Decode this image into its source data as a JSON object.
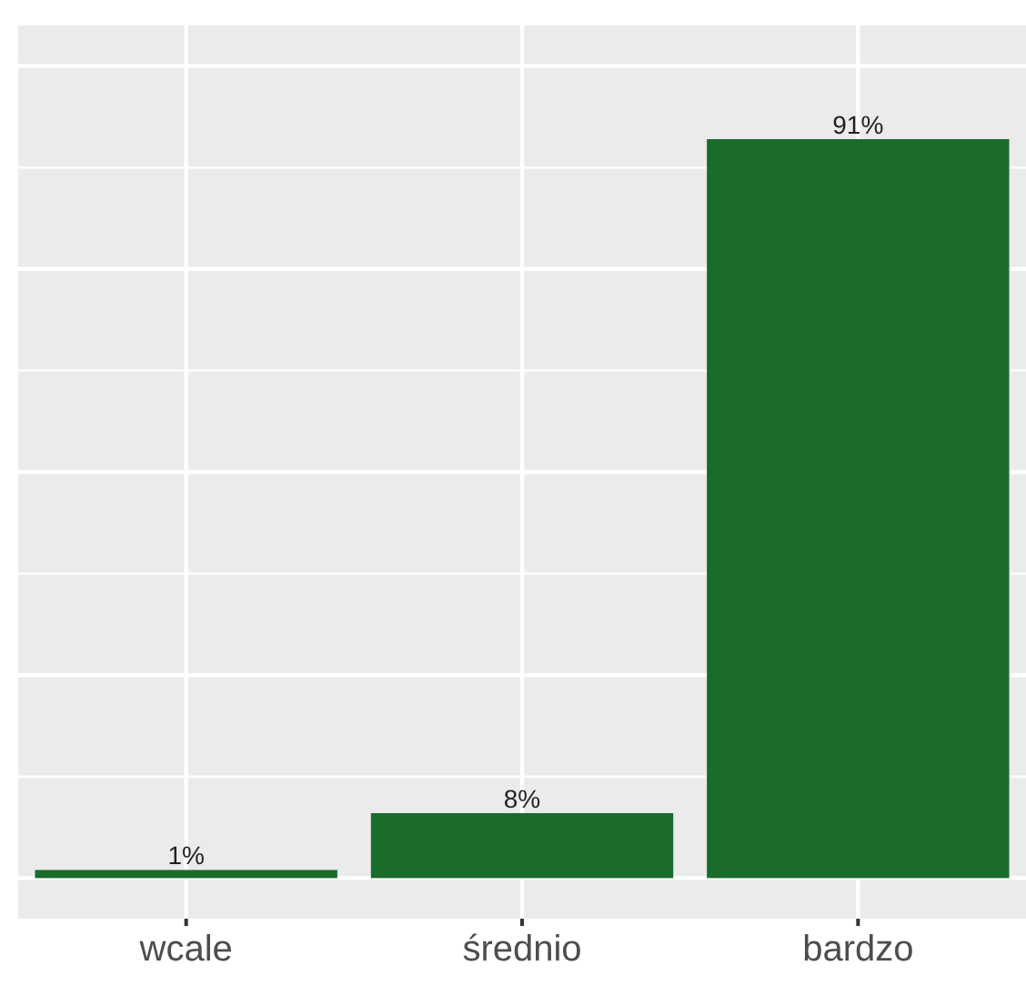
{
  "chart_data": {
    "type": "bar",
    "categories": [
      "wcale",
      "średnio",
      "bardzo"
    ],
    "values": [
      1,
      8,
      91
    ],
    "value_labels": [
      "1%",
      "8%",
      "91%"
    ],
    "color": "#1b6b2b",
    "ylim": [
      -5,
      105
    ],
    "yticks": [
      {
        "value": 0,
        "label": null
      },
      {
        "value": 12.5,
        "label": null
      },
      {
        "value": 25,
        "label": null
      },
      {
        "value": 37.5,
        "label": null
      },
      {
        "value": 50,
        "label": null
      },
      {
        "value": 62.5,
        "label": null
      },
      {
        "value": 75,
        "label": null
      },
      {
        "value": 87.5,
        "label": null
      },
      {
        "value": 100,
        "label": null
      }
    ],
    "grid": true,
    "tick_labels": "x"
  }
}
